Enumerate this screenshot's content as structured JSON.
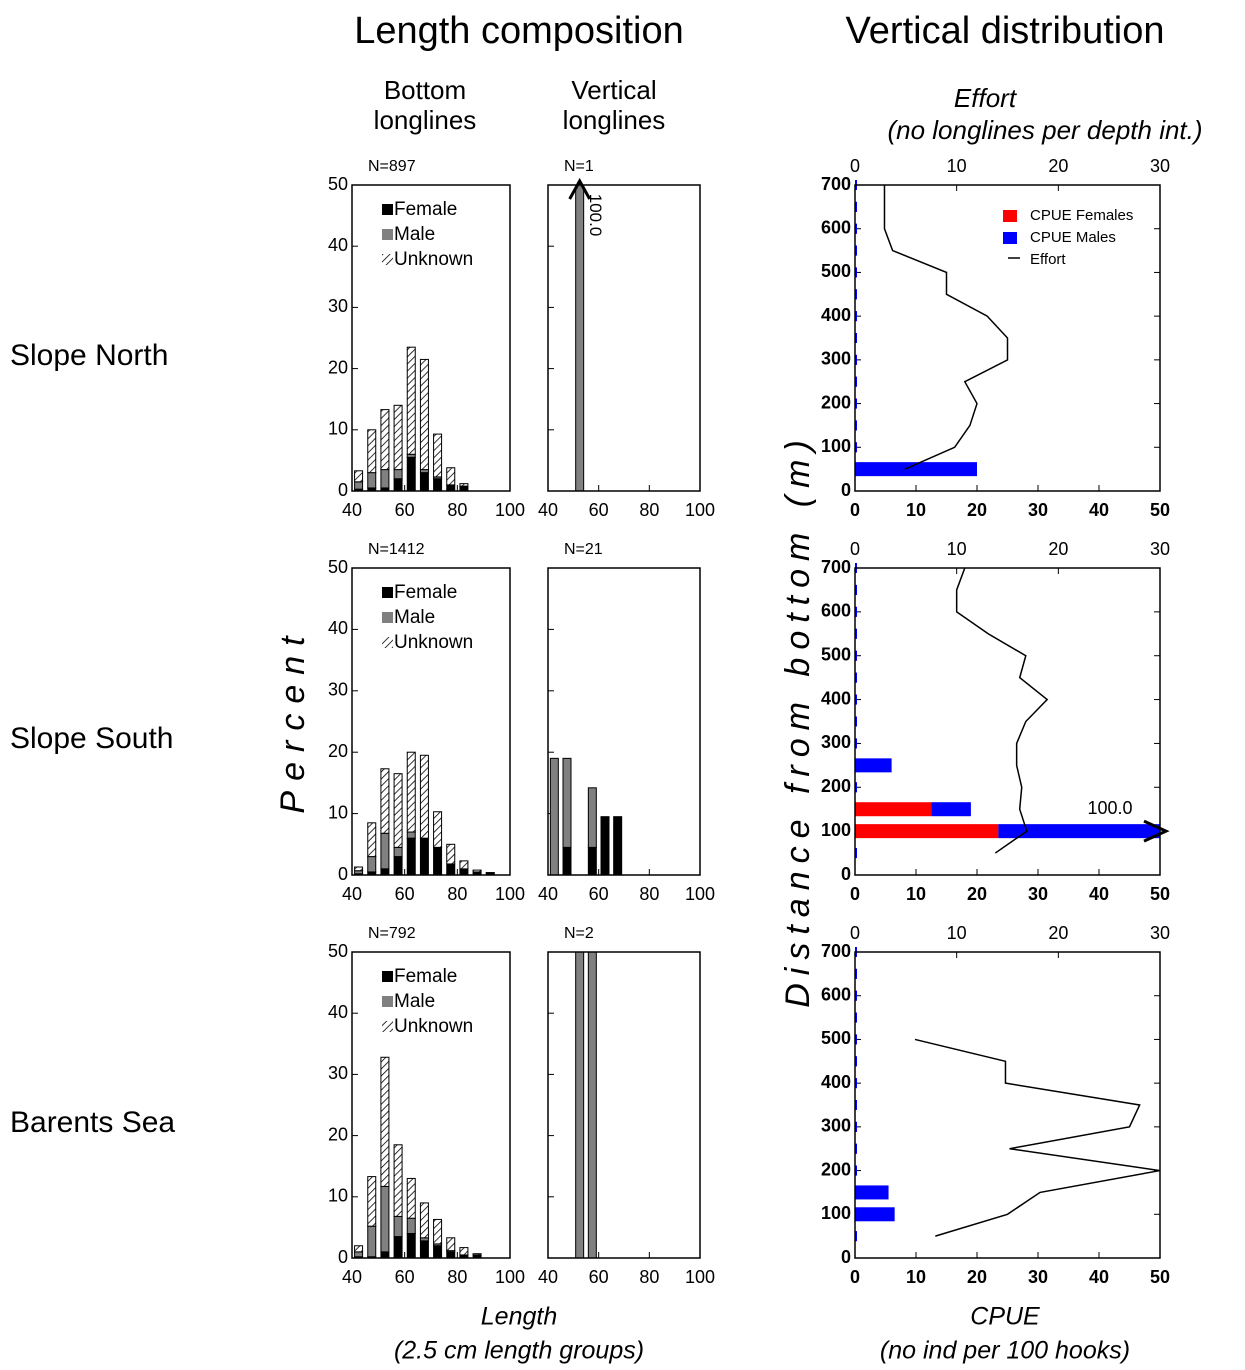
{
  "titles": {
    "left": "Length composition",
    "right": "Vertical distribution",
    "col1": [
      "Bottom",
      "longlines"
    ],
    "col2": [
      "Vertical",
      "longlines"
    ],
    "col3_top": [
      "Effort",
      "(no longlines per depth int.)"
    ],
    "x_left": [
      "Length",
      "(2.5 cm length groups)"
    ],
    "x_right": [
      "CPUE",
      "(no ind per 100 hooks)"
    ],
    "y_left": "Percent",
    "y_right": "Distance from bottom (m)"
  },
  "rows": [
    "Slope North",
    "Slope South",
    "Barents Sea"
  ],
  "chart_data": [
    {
      "type": "stacked_bar",
      "subtitle": "N=897",
      "legend": "upper left",
      "x": [
        42.5,
        47.5,
        52.5,
        57.5,
        62.5,
        67.5,
        72.5,
        77.5,
        82.5
      ],
      "series": [
        {
          "name": "Female",
          "color": "#000000",
          "values": [
            0.3,
            0.5,
            0.5,
            2.0,
            5.5,
            3.0,
            2.0,
            1.0,
            0.8
          ]
        },
        {
          "name": "Male",
          "color": "#808080",
          "values": [
            1.2,
            2.5,
            3.0,
            1.5,
            0.5,
            0.5,
            0.3,
            0,
            0
          ]
        },
        {
          "name": "Unknown",
          "pattern": "hatch",
          "values": [
            1.8,
            7.0,
            9.8,
            10.5,
            17.5,
            18.0,
            7.0,
            2.8,
            0.4
          ]
        }
      ],
      "xlim": [
        40,
        100
      ],
      "xticks": [
        40,
        60,
        80,
        100
      ],
      "ylim": [
        0,
        50
      ],
      "yticks": [
        0,
        10,
        20,
        30,
        40,
        50
      ]
    },
    {
      "type": "stacked_bar",
      "subtitle": "N=1",
      "ytick_labels": false,
      "x": [
        52.5
      ],
      "series": [
        {
          "color": "#808080",
          "values": [
            100
          ],
          "value_labels": [
            "100.0"
          ]
        }
      ],
      "xlim": [
        40,
        100
      ],
      "xticks": [
        40,
        60,
        80,
        100
      ],
      "ylim": [
        0,
        50
      ],
      "yticks": [
        0,
        10,
        20,
        30,
        40,
        50
      ]
    },
    {
      "type": "hbar_line",
      "legend": "upper right",
      "y": [
        50,
        100,
        150,
        200,
        250,
        300,
        350,
        400,
        450,
        500,
        550,
        600,
        650,
        700
      ],
      "series": [
        {
          "name": "CPUE Females",
          "color": "#ff0000",
          "values": [
            0,
            0,
            0,
            0,
            0,
            0,
            0,
            0,
            0,
            0,
            0,
            0,
            0,
            0
          ]
        },
        {
          "name": "CPUE Males",
          "color": "#0000ff",
          "values": [
            20,
            0,
            0,
            0,
            0,
            0,
            0,
            0,
            0,
            0,
            0,
            0,
            0,
            0
          ]
        },
        {
          "name": "Effort",
          "color": "#000000",
          "axis": "x2",
          "values": [
            4.9,
            9.8,
            11.3,
            12,
            10.8,
            15,
            15,
            13,
            9,
            9,
            3.7,
            2.9,
            2.9,
            2.9
          ]
        }
      ],
      "xlim": [
        0,
        50
      ],
      "xticks": [
        0,
        10,
        20,
        30,
        40,
        50
      ],
      "x2lim": [
        0,
        30
      ],
      "x2ticks": [
        0,
        10,
        20,
        30
      ],
      "ylim": [
        0,
        700
      ],
      "yticks": [
        0,
        100,
        200,
        300,
        400,
        500,
        600,
        700
      ]
    },
    {
      "type": "stacked_bar",
      "subtitle": "N=1412",
      "legend": "upper left",
      "x": [
        42.5,
        47.5,
        52.5,
        57.5,
        62.5,
        67.5,
        72.5,
        77.5,
        82.5,
        87.5,
        92.5
      ],
      "series": [
        {
          "name": "Female",
          "color": "#000000",
          "values": [
            0.2,
            0.5,
            1.0,
            3.0,
            6.0,
            6.0,
            4.5,
            1.8,
            1.0,
            0.5,
            0.3
          ]
        },
        {
          "name": "Male",
          "color": "#808080",
          "values": [
            0.5,
            2.5,
            5.8,
            1.5,
            1.0,
            0,
            0,
            0,
            0,
            0,
            0
          ]
        },
        {
          "name": "Unknown",
          "pattern": "hatch",
          "values": [
            0.6,
            5.5,
            10.5,
            12.0,
            13.0,
            13.5,
            5.8,
            3.2,
            1.3,
            0.3,
            0.1
          ]
        }
      ],
      "xlim": [
        40,
        100
      ],
      "xticks": [
        40,
        60,
        80,
        100
      ],
      "ylim": [
        0,
        50
      ],
      "yticks": [
        0,
        10,
        20,
        30,
        40,
        50
      ]
    },
    {
      "type": "stacked_bar",
      "subtitle": "N=21",
      "ytick_labels": false,
      "x": [
        42.5,
        47.5,
        57.5,
        62.5,
        67.5
      ],
      "series": [
        {
          "color": "#000000",
          "values": [
            0,
            4.5,
            4.5,
            9.5,
            9.5
          ]
        },
        {
          "color": "#808080",
          "values": [
            19,
            14.5,
            9.7,
            0,
            0
          ]
        }
      ],
      "xlim": [
        40,
        100
      ],
      "xticks": [
        40,
        60,
        80,
        100
      ],
      "ylim": [
        0,
        50
      ],
      "yticks": [
        0,
        10,
        20,
        30,
        40,
        50
      ]
    },
    {
      "type": "hbar_line",
      "annotation": "100.0",
      "y": [
        50,
        100,
        150,
        200,
        250,
        300,
        350,
        400,
        450,
        500,
        550,
        600,
        650,
        700
      ],
      "series": [
        {
          "color": "#ff0000",
          "values": [
            0,
            23.5,
            12.5,
            0,
            0,
            0,
            0,
            0,
            0,
            0,
            0,
            0,
            0,
            0
          ]
        },
        {
          "color": "#0000ff",
          "values": [
            0,
            76.5,
            6.5,
            0,
            6,
            0,
            0,
            0,
            0,
            0,
            0,
            0,
            0,
            0
          ]
        },
        {
          "color": "#000000",
          "axis": "x2",
          "values": [
            13.8,
            16.9,
            16.2,
            16.4,
            15.9,
            15.9,
            16.8,
            18.9,
            16.2,
            16.8,
            13.1,
            10,
            10,
            10.8
          ]
        }
      ],
      "xlim": [
        0,
        50
      ],
      "xticks": [
        0,
        10,
        20,
        30,
        40,
        50
      ],
      "x2lim": [
        0,
        30
      ],
      "x2ticks": [
        0,
        10,
        20,
        30
      ],
      "ylim": [
        0,
        700
      ],
      "yticks": [
        0,
        100,
        200,
        300,
        400,
        500,
        600,
        700
      ]
    },
    {
      "type": "stacked_bar",
      "subtitle": "N=792",
      "legend": "upper left",
      "x": [
        42.5,
        47.5,
        52.5,
        57.5,
        62.5,
        67.5,
        72.5,
        77.5,
        82.5,
        87.5
      ],
      "series": [
        {
          "name": "Female",
          "color": "#000000",
          "values": [
            0.2,
            0.2,
            1.0,
            3.5,
            4.0,
            2.8,
            2.0,
            1.0,
            0.5,
            0.5
          ]
        },
        {
          "name": "Male",
          "color": "#808080",
          "values": [
            0.8,
            5.0,
            10.7,
            3.3,
            2.5,
            0.5,
            0.3,
            0.2,
            0,
            0
          ]
        },
        {
          "name": "Unknown",
          "pattern": "hatch",
          "values": [
            1.0,
            8.1,
            21.1,
            11.7,
            6.5,
            5.7,
            4.0,
            2.1,
            1.2,
            0.2
          ]
        }
      ],
      "xlim": [
        40,
        100
      ],
      "xticks": [
        40,
        60,
        80,
        100
      ],
      "ylim": [
        0,
        50
      ],
      "yticks": [
        0,
        10,
        20,
        30,
        40,
        50
      ]
    },
    {
      "type": "stacked_bar",
      "subtitle": "N=2",
      "ytick_labels": false,
      "x": [
        52.5,
        57.5
      ],
      "series": [
        {
          "color": "#808080",
          "values": [
            50,
            50
          ]
        }
      ],
      "xlim": [
        40,
        100
      ],
      "xticks": [
        40,
        60,
        80,
        100
      ],
      "ylim": [
        0,
        50
      ],
      "yticks": [
        0,
        10,
        20,
        30,
        40,
        50
      ]
    },
    {
      "type": "hbar_line",
      "y": [
        50,
        100,
        150,
        200,
        250,
        300,
        350,
        400,
        450,
        500,
        550,
        600,
        650,
        700
      ],
      "series": [
        {
          "color": "#ff0000",
          "values": [
            0,
            0,
            0,
            0,
            0,
            0,
            0,
            0,
            0,
            0,
            0,
            0,
            0,
            0
          ]
        },
        {
          "color": "#0000ff",
          "values": [
            0,
            6.5,
            5.5,
            0,
            0,
            0,
            0,
            0,
            0,
            0,
            0,
            0,
            0,
            0
          ]
        },
        {
          "color": "#000000",
          "axis": "x2",
          "values": [
            7.9,
            15,
            18.2,
            30,
            15.2,
            27,
            28,
            14.8,
            14.8,
            5.9,
            null,
            null,
            null,
            null
          ]
        }
      ],
      "xlim": [
        0,
        50
      ],
      "xticks": [
        0,
        10,
        20,
        30,
        40,
        50
      ],
      "x2lim": [
        0,
        30
      ],
      "x2ticks": [
        0,
        10,
        20,
        30
      ],
      "ylim": [
        0,
        700
      ],
      "yticks": [
        0,
        100,
        200,
        300,
        400,
        500,
        600,
        700
      ]
    }
  ]
}
